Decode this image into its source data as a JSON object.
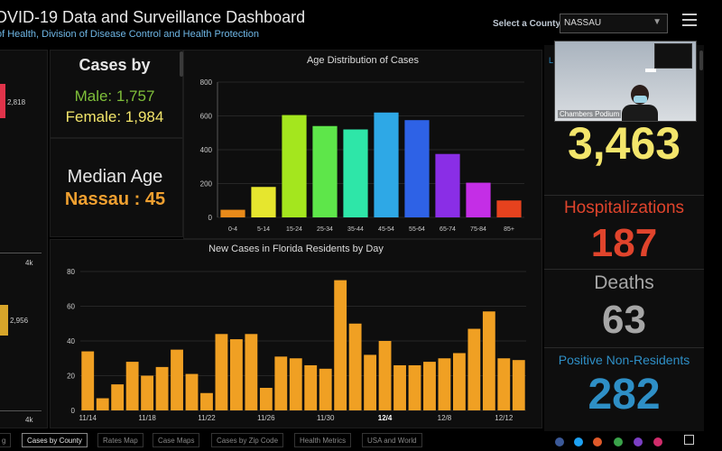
{
  "header": {
    "title": "OVID-19 Data and Surveillance Dashboard",
    "subtitle": "of Health, Division of Disease Control and Health Protection",
    "select_label": "Select a County",
    "county_value": "NASSAU"
  },
  "left_panel": {
    "top_value": "2,818",
    "top_axis": "4k",
    "bottom_value": "2,956",
    "bottom_axis": "4k"
  },
  "gender": {
    "title": "Cases by",
    "male": "Male: 1,757",
    "female": "Female: 1,984"
  },
  "median": {
    "label": "Median Age",
    "value": "Nassau : 45"
  },
  "video": {
    "caption": "Chambers Podium",
    "partial_label": "L"
  },
  "stats": {
    "cases": "3,463",
    "hospitalizations_label": "Hospitalizations",
    "hospitalizations": "187",
    "deaths_label": "Deaths",
    "deaths": "63",
    "nonres_label": "Positive Non-Residents",
    "nonres": "282"
  },
  "colors": {
    "hosp": "#e0442c",
    "deaths": "#a6a6a6",
    "nonres": "#2e8fc6",
    "cases": "#f3e56b",
    "daily_bar": "#f0a023"
  },
  "tabs": [
    "g",
    "Cases by County",
    "Rates Map",
    "Case Maps",
    "Cases by Zip Code",
    "Health Metrics",
    "USA and World"
  ],
  "chart_data": [
    {
      "type": "bar",
      "title": "Age Distribution of Cases",
      "categories": [
        "0-4",
        "5-14",
        "15-24",
        "25-34",
        "35-44",
        "45-54",
        "55-64",
        "65-74",
        "75-84",
        "85+"
      ],
      "values": [
        45,
        180,
        605,
        540,
        520,
        620,
        575,
        375,
        205,
        100
      ],
      "colors": [
        "#e88a1a",
        "#e6e62e",
        "#a4e61e",
        "#5ee64a",
        "#2ee6a8",
        "#2ea8e6",
        "#2e62e6",
        "#8a2ee6",
        "#c42ee6",
        "#e6421e"
      ],
      "ylim": [
        0,
        800
      ],
      "yticks": [
        0,
        200,
        400,
        600,
        800
      ]
    },
    {
      "type": "bar",
      "title": "New Cases in Florida Residents by Day",
      "x": [
        "11/14",
        "11/15",
        "11/16",
        "11/17",
        "11/18",
        "11/19",
        "11/20",
        "11/21",
        "11/22",
        "11/23",
        "11/24",
        "11/25",
        "11/26",
        "11/27",
        "11/28",
        "11/29",
        "11/30",
        "12/1",
        "12/2",
        "12/3",
        "12/4",
        "12/5",
        "12/6",
        "12/7",
        "12/8",
        "12/9",
        "12/10",
        "12/11",
        "12/12",
        "12/13"
      ],
      "values": [
        34,
        7,
        15,
        28,
        20,
        25,
        35,
        21,
        10,
        44,
        41,
        44,
        13,
        31,
        30,
        26,
        24,
        75,
        50,
        32,
        40,
        26,
        26,
        28,
        30,
        33,
        47,
        57,
        30,
        29
      ],
      "xtick_labels": [
        "11/14",
        "11/18",
        "11/22",
        "11/26",
        "11/30",
        "12/4",
        "12/8",
        "12/12"
      ],
      "bold_tick": "12/4",
      "ylim": [
        0,
        80
      ],
      "yticks": [
        0,
        20,
        40,
        60,
        80
      ]
    }
  ]
}
